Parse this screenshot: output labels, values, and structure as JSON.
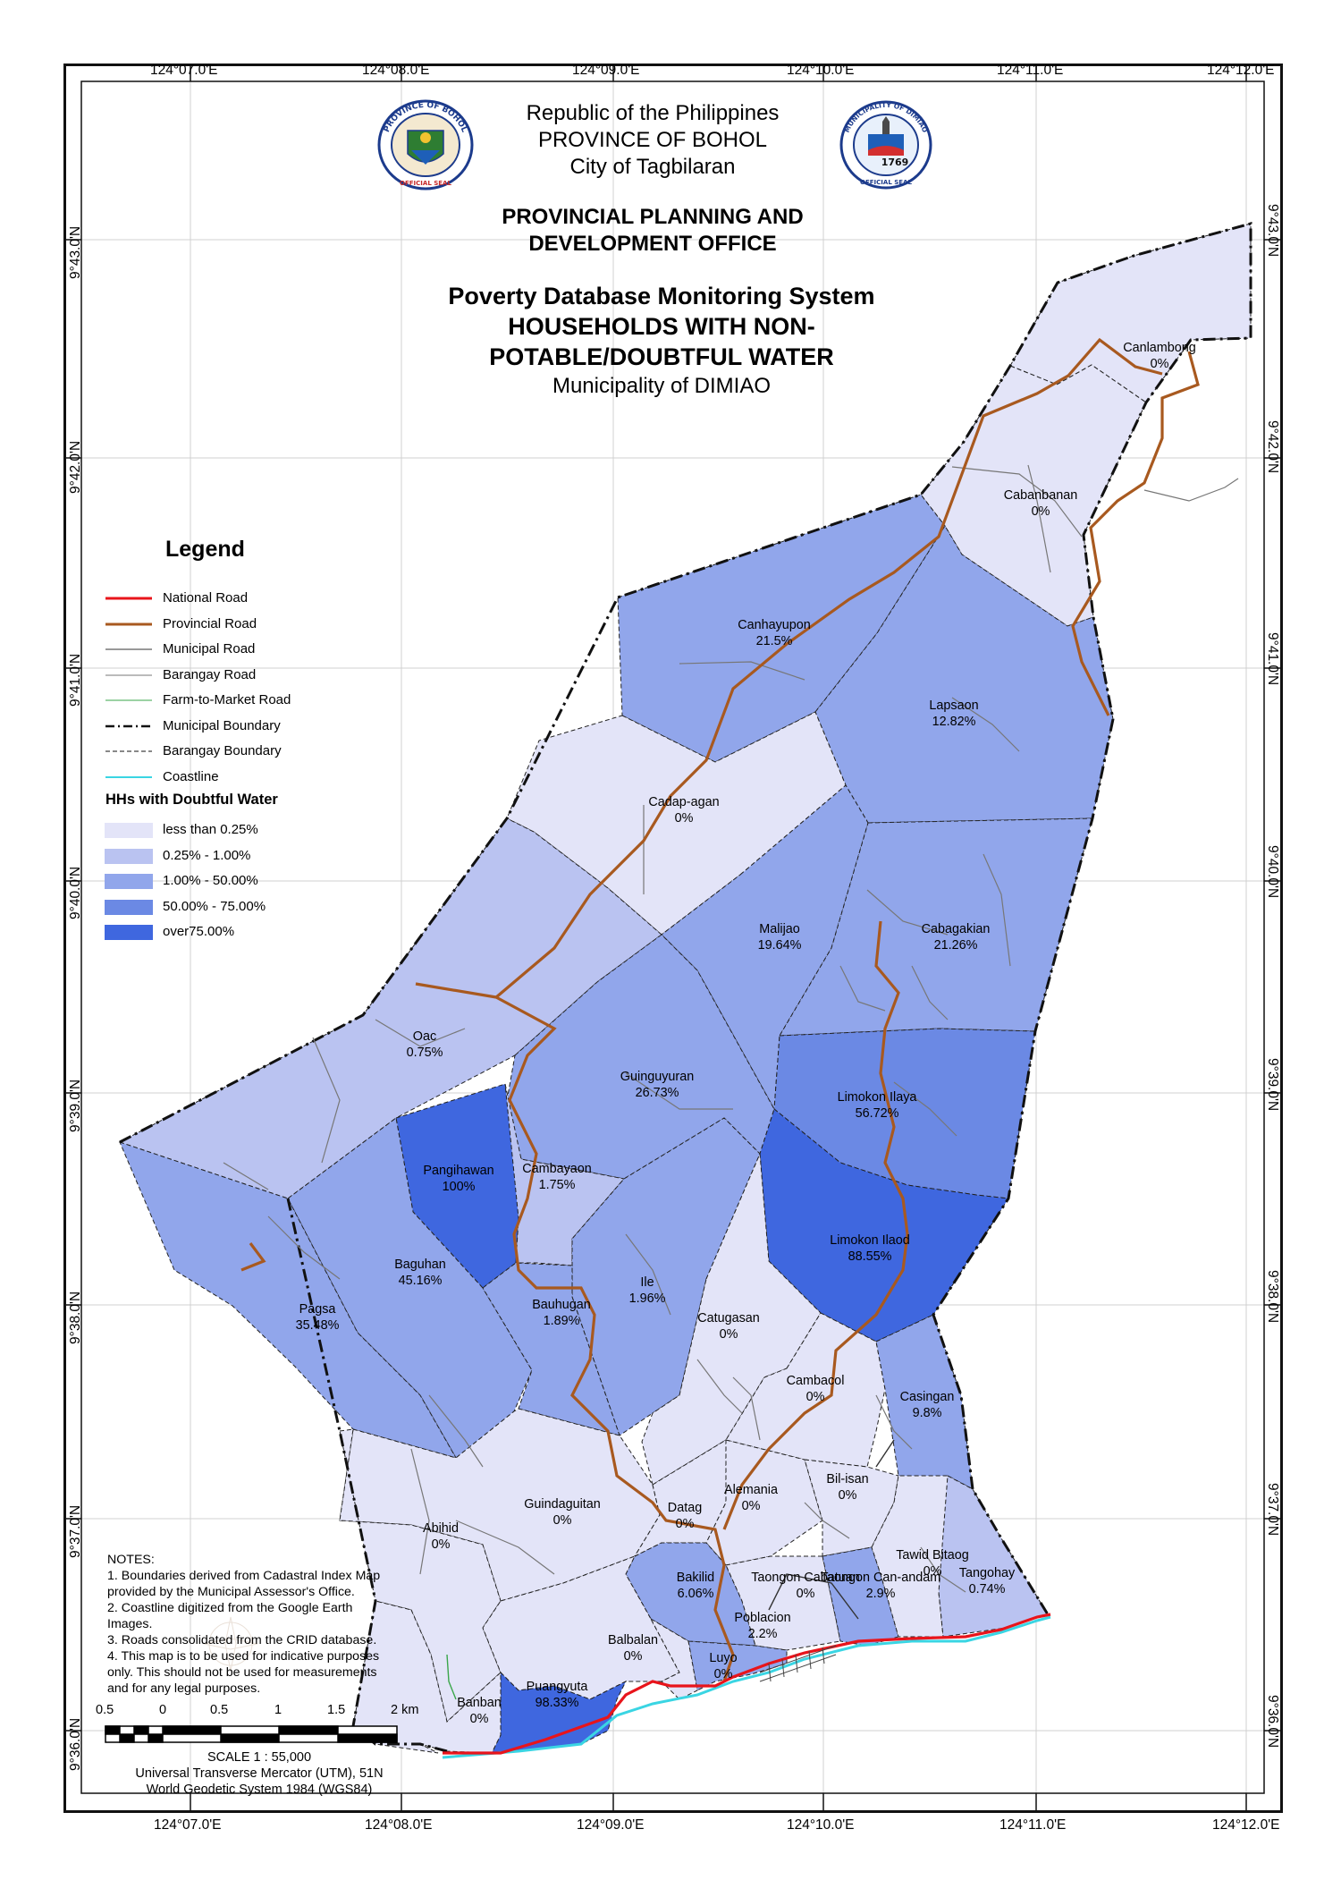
{
  "header": {
    "republic": "Republic of the Philippines",
    "province": "PROVINCE OF BOHOL",
    "city": "City of Tagbilaran",
    "office_line1": "PROVINCIAL PLANNING AND",
    "office_line2": "DEVELOPMENT OFFICE",
    "system": "Poverty Database Monitoring System",
    "title_line1": "HOUSEHOLDS WITH NON-",
    "title_line2": "POTABLE/DOUBTFUL WATER",
    "municipality": "Municipality of DIMIAO"
  },
  "seals": {
    "left": {
      "top_text": "PROVINCE OF BOHOL",
      "bottom_text": "OFFICIAL SEAL"
    },
    "right": {
      "top_text": "MUNICIPALITY OF DIMIAO",
      "year": "1769",
      "bottom_text": "OFFICIAL SEAL"
    }
  },
  "coordinates": {
    "top": [
      "124°07.0'E",
      "124°08.0'E",
      "124°09.0'E",
      "124°10.0'E",
      "124°11.0'E",
      "124°12.0'E"
    ],
    "bottom": [
      "124°07.0'E",
      "124°08.0'E",
      "124°09.0'E",
      "124°10.0'E",
      "124°11.0'E",
      "124°12.0'E"
    ],
    "left": [
      "9°43.0'N",
      "9°42.0'N",
      "9°41.0'N",
      "9°40.0'N",
      "9°39.0'N",
      "9°38.0'N",
      "9°37.0'N",
      "9°36.0'N"
    ],
    "right": [
      "9°43.0'N",
      "9°42.0'N",
      "9°41.0'N",
      "9°40.0'N",
      "9°39.0'N",
      "9°38.0'N",
      "9°37.0'N",
      "9°36.0'N"
    ]
  },
  "legend": {
    "title": "Legend",
    "lines": [
      {
        "label": "National Road",
        "color": "#e8141b",
        "style": "solid",
        "width": 3
      },
      {
        "label": "Provincial Road",
        "color": "#a8591f",
        "style": "solid",
        "width": 3
      },
      {
        "label": "Municipal Road",
        "color": "#333333",
        "style": "solid",
        "width": 1
      },
      {
        "label": "Barangay Road",
        "color": "#777777",
        "style": "solid",
        "width": 1
      },
      {
        "label": "Farm-to-Market Road",
        "color": "#3aa64a",
        "style": "solid",
        "width": 1
      },
      {
        "label": "Municipal Boundary",
        "color": "#111111",
        "style": "dashdot",
        "width": 2.5
      },
      {
        "label": "Barangay Boundary",
        "color": "#111111",
        "style": "dash",
        "width": 1
      },
      {
        "label": "Coastline",
        "color": "#3ad5e3",
        "style": "solid",
        "width": 2
      }
    ],
    "classes_title": "HHs with Doubtful Water",
    "classes": [
      {
        "label": "less than 0.25%",
        "color": "#e3e4f8"
      },
      {
        "label": "0.25% - 1.00%",
        "color": "#bac3f1"
      },
      {
        "label": "1.00% - 50.00%",
        "color": "#91a6eb"
      },
      {
        "label": "50.00% - 75.00%",
        "color": "#6b89e4"
      },
      {
        "label": "over75.00%",
        "color": "#3f67df"
      }
    ]
  },
  "barangays": [
    {
      "name": "Canlambong",
      "value": "0%"
    },
    {
      "name": "Cabanbanan",
      "value": "0%"
    },
    {
      "name": "Canhayupon",
      "value": "21.5%"
    },
    {
      "name": "Lapsaon",
      "value": "12.82%"
    },
    {
      "name": "Cadap-agan",
      "value": "0%"
    },
    {
      "name": "Malijao",
      "value": "19.64%"
    },
    {
      "name": "Cabagakian",
      "value": "21.26%"
    },
    {
      "name": "Oac",
      "value": "0.75%"
    },
    {
      "name": "Guinguyuran",
      "value": "26.73%"
    },
    {
      "name": "Limokon Ilaya",
      "value": "56.72%"
    },
    {
      "name": "Pangihawan",
      "value": "100%"
    },
    {
      "name": "Cambayaon",
      "value": "1.75%"
    },
    {
      "name": "Limokon Ilaod",
      "value": "88.55%"
    },
    {
      "name": "Baguhan",
      "value": "45.16%"
    },
    {
      "name": "Pagsa",
      "value": "35.48%"
    },
    {
      "name": "Ile",
      "value": "1.96%"
    },
    {
      "name": "Bauhugan",
      "value": "1.89%"
    },
    {
      "name": "Catugasan",
      "value": "0%"
    },
    {
      "name": "Cambacol",
      "value": "0%"
    },
    {
      "name": "Casingan",
      "value": "9.8%"
    },
    {
      "name": "Guindaguitan",
      "value": "0%"
    },
    {
      "name": "Datag",
      "value": "0%"
    },
    {
      "name": "Alemania",
      "value": "0%"
    },
    {
      "name": "Bil-isan",
      "value": "0%"
    },
    {
      "name": "Abihid",
      "value": "0%"
    },
    {
      "name": "Bakilid",
      "value": "6.06%"
    },
    {
      "name": "Taongon Can-andam",
      "value": "2.9%"
    },
    {
      "name": "Taongon Cabatuan",
      "value": "0%"
    },
    {
      "name": "Tawid Bitaog",
      "value": "0%"
    },
    {
      "name": "Tangohay",
      "value": "0.74%"
    },
    {
      "name": "Poblacion",
      "value": "2.2%"
    },
    {
      "name": "Balbalan",
      "value": "0%"
    },
    {
      "name": "Luyo",
      "value": "0%"
    },
    {
      "name": "Puangyuta",
      "value": "98.33%"
    },
    {
      "name": "Banban",
      "value": "0%"
    }
  ],
  "notes": {
    "title": "NOTES:",
    "items": [
      "1. Boundaries derived from Cadastral Index Map",
      "provided by the Municipal Assessor's Office.",
      "2. Coastline digitized from the Google Earth",
      "Images.",
      "3. Roads consolidated from the CRID database.",
      "4. This map is to be used for indicative purposes",
      "only. This should not be used for measurements",
      "and for any legal purposes."
    ]
  },
  "scale": {
    "ticks": [
      "0.5",
      "0",
      "0.5",
      "1",
      "1.5",
      "2 km"
    ],
    "ratio": "SCALE   1   :   55,000",
    "projection": "Universal Transverse Mercator (UTM), 51N",
    "datum": "World Geodetic System 1984 (WGS84)"
  }
}
